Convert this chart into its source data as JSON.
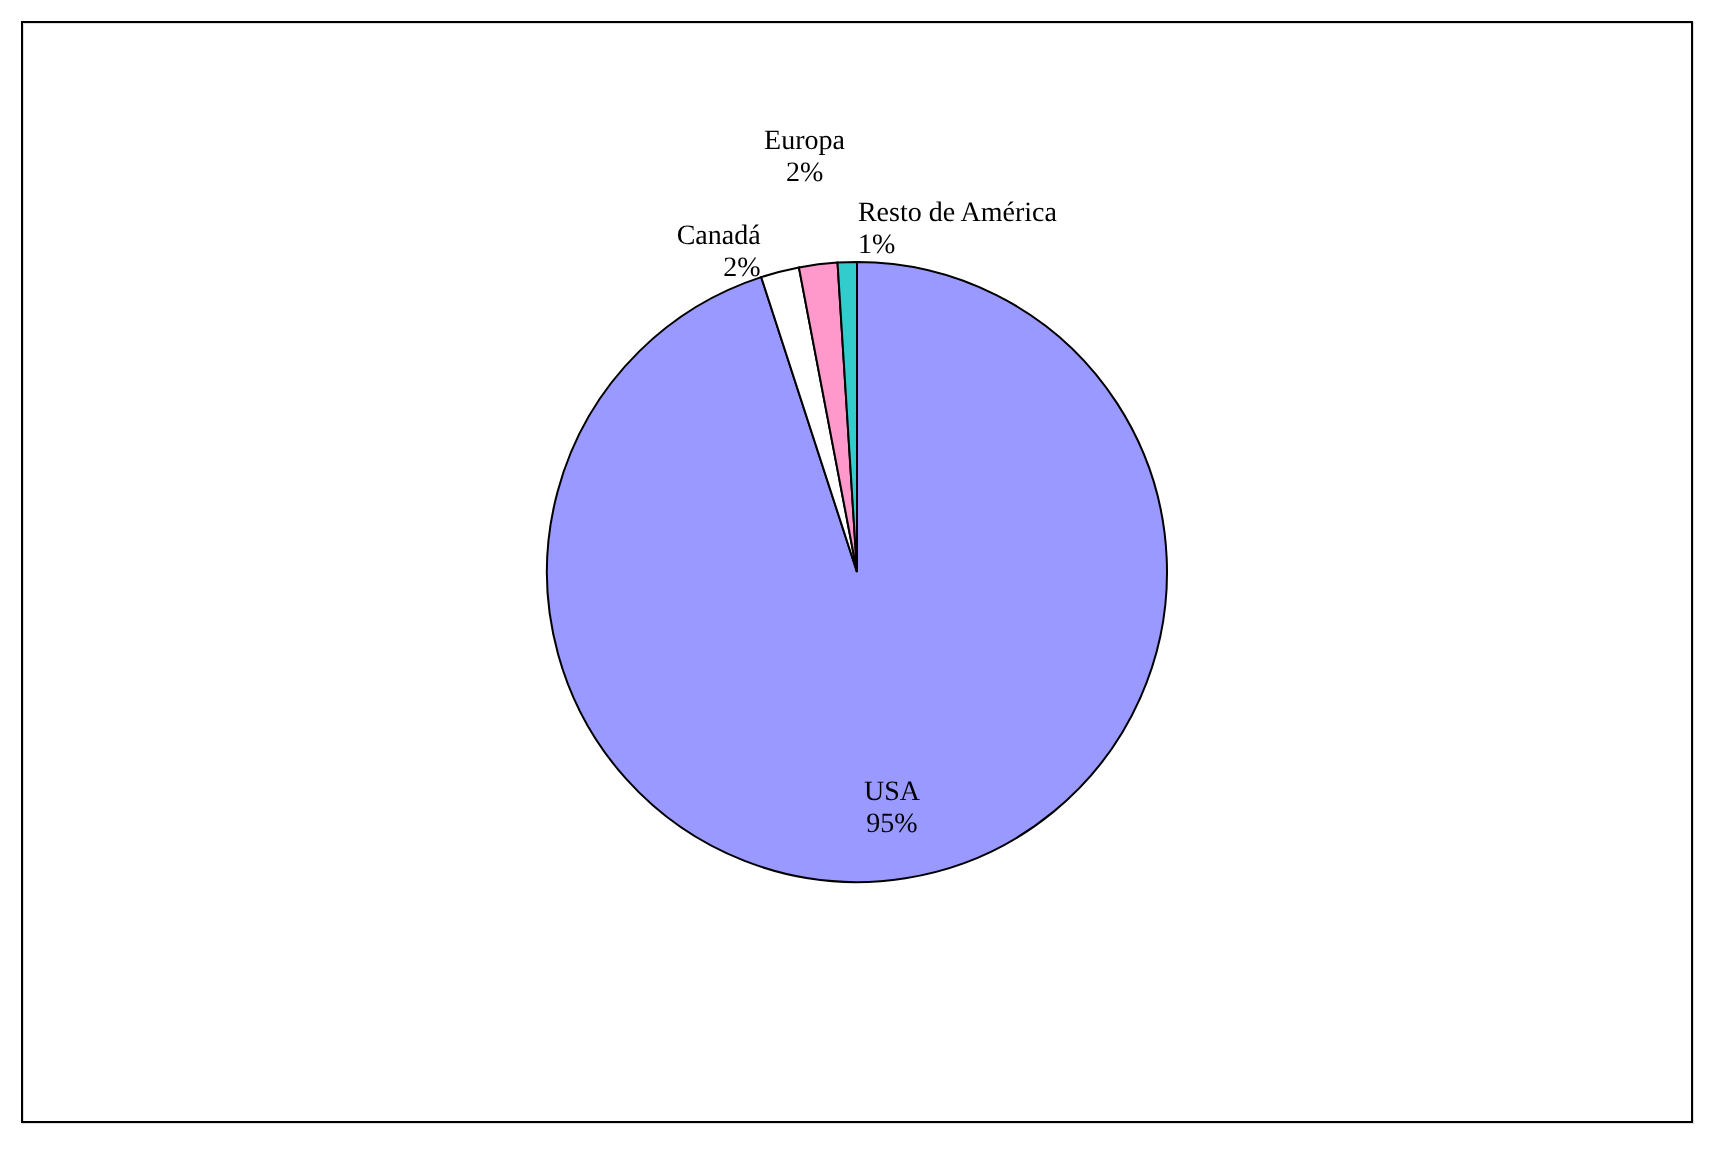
{
  "chart_data": {
    "type": "pie",
    "categories": [
      "USA",
      "Canadá",
      "Europa",
      "Resto de América"
    ],
    "values": [
      95,
      2,
      2,
      1
    ],
    "colors": [
      "#9999ff",
      "#ffffff",
      "#ff99cc",
      "#33cccc"
    ],
    "value_labels": [
      "95%",
      "2%",
      "2%",
      "1%"
    ]
  }
}
